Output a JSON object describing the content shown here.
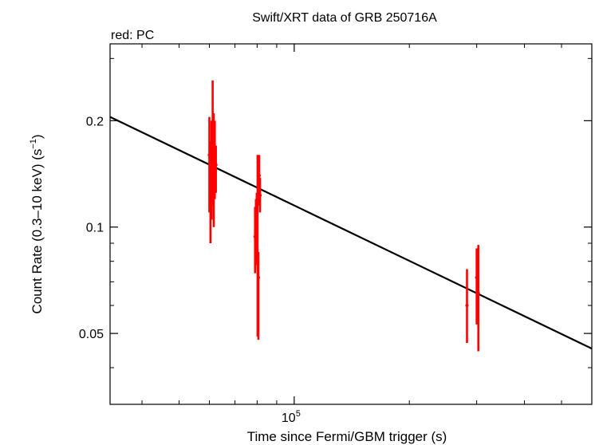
{
  "chart_data": {
    "type": "scatter",
    "title": "Swift/XRT data of GRB 250716A",
    "subtitle": "red: PC",
    "xlabel": "Time since Fermi/GBM trigger (s)",
    "ylabel_main": "Count Rate (0.3–10 keV) (s",
    "ylabel_sup": "−1",
    "ylabel_end": ")",
    "x_scale": "log",
    "y_scale": "log",
    "xlim": [
      33000,
      600000
    ],
    "ylim": [
      0.0315,
      0.33
    ],
    "x_ticks": [
      {
        "value": 100000,
        "base": "10",
        "exp": "5"
      }
    ],
    "y_ticks": [
      {
        "value": 0.2,
        "label": "0.2"
      },
      {
        "value": 0.1,
        "label": "0.1"
      },
      {
        "value": 0.05,
        "label": "0.05"
      }
    ],
    "grid": false,
    "series_color": "#ff0000",
    "fit_color": "#000000",
    "fit_line": {
      "x": [
        33000,
        600000
      ],
      "y": [
        0.205,
        0.0453
      ]
    },
    "points": [
      {
        "x": 60000,
        "y": 0.16,
        "ylo": 0.11,
        "yhi": 0.205
      },
      {
        "x": 60400,
        "y": 0.125,
        "ylo": 0.09,
        "yhi": 0.175
      },
      {
        "x": 60800,
        "y": 0.15,
        "ylo": 0.105,
        "yhi": 0.2
      },
      {
        "x": 61200,
        "y": 0.18,
        "ylo": 0.115,
        "yhi": 0.26
      },
      {
        "x": 61600,
        "y": 0.14,
        "ylo": 0.1,
        "yhi": 0.21
      },
      {
        "x": 62000,
        "y": 0.16,
        "ylo": 0.12,
        "yhi": 0.2
      },
      {
        "x": 62400,
        "y": 0.15,
        "ylo": 0.125,
        "yhi": 0.17
      },
      {
        "x": 79000,
        "y": 0.094,
        "ylo": 0.074,
        "yhi": 0.114
      },
      {
        "x": 79400,
        "y": 0.11,
        "ylo": 0.078,
        "yhi": 0.12
      },
      {
        "x": 79800,
        "y": 0.119,
        "ylo": 0.104,
        "yhi": 0.125
      },
      {
        "x": 80200,
        "y": 0.08,
        "ylo": 0.049,
        "yhi": 0.16
      },
      {
        "x": 80600,
        "y": 0.072,
        "ylo": 0.048,
        "yhi": 0.085
      },
      {
        "x": 81000,
        "y": 0.14,
        "ylo": 0.115,
        "yhi": 0.16
      },
      {
        "x": 81400,
        "y": 0.123,
        "ylo": 0.11,
        "yhi": 0.138
      },
      {
        "x": 283000,
        "y": 0.06,
        "ylo": 0.047,
        "yhi": 0.076
      },
      {
        "x": 300000,
        "y": 0.072,
        "ylo": 0.053,
        "yhi": 0.087
      },
      {
        "x": 303000,
        "y": 0.065,
        "ylo": 0.0445,
        "yhi": 0.089
      }
    ]
  }
}
